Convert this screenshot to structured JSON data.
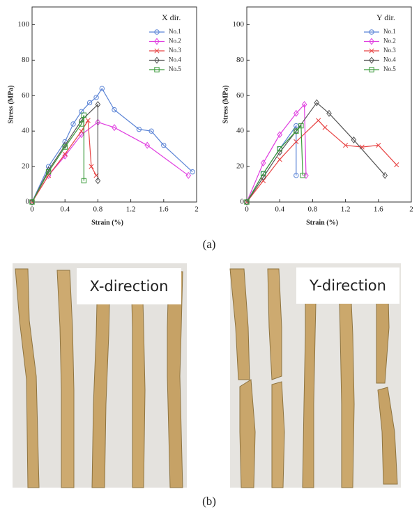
{
  "chart_data": [
    {
      "type": "line",
      "legend_title": "X dir.",
      "xlabel": "Strain (%)",
      "ylabel": "Stress (MPa)",
      "xlim": [
        0,
        2
      ],
      "ylim": [
        0,
        110
      ],
      "xticks": [
        0,
        0.4,
        0.8,
        1.2,
        1.6,
        2
      ],
      "yticks": [
        0,
        20,
        40,
        60,
        80,
        100
      ],
      "series": [
        {
          "name": "No.1",
          "color": "#5b84d6",
          "marker": "circle",
          "x": [
            0,
            0.2,
            0.4,
            0.5,
            0.6,
            0.7,
            0.78,
            0.85,
            1.0,
            1.3,
            1.45,
            1.6,
            1.95
          ],
          "values": [
            0,
            20,
            34,
            44,
            51,
            56,
            59,
            64,
            52,
            41,
            40,
            32,
            17
          ]
        },
        {
          "name": "No.2",
          "color": "#e03ee0",
          "marker": "diamond",
          "x": [
            0,
            0.2,
            0.4,
            0.6,
            0.8,
            1.0,
            1.4,
            1.9
          ],
          "values": [
            0,
            15,
            26,
            38,
            45,
            42,
            32,
            15
          ]
        },
        {
          "name": "No.3",
          "color": "#e84444",
          "marker": "x",
          "x": [
            0,
            0.2,
            0.4,
            0.6,
            0.68,
            0.72,
            0.78
          ],
          "values": [
            0,
            15,
            27,
            40,
            46,
            20,
            15
          ]
        },
        {
          "name": "No.4",
          "color": "#555555",
          "marker": "diamond",
          "x": [
            0,
            0.2,
            0.4,
            0.6,
            0.8,
            0.8
          ],
          "values": [
            0,
            18,
            32,
            46,
            55,
            12
          ]
        },
        {
          "name": "No.5",
          "color": "#3a9a3a",
          "marker": "square",
          "x": [
            0,
            0.2,
            0.4,
            0.6,
            0.63,
            0.63
          ],
          "values": [
            0,
            17,
            31,
            44,
            49,
            12
          ]
        }
      ]
    },
    {
      "type": "line",
      "legend_title": "Y dir.",
      "xlabel": "Strain (%)",
      "ylabel": "Stress (MPa)",
      "xlim": [
        0,
        2
      ],
      "ylim": [
        0,
        110
      ],
      "xticks": [
        0,
        0.4,
        0.8,
        1.2,
        1.6,
        2
      ],
      "yticks": [
        0,
        20,
        40,
        60,
        80,
        100
      ],
      "series": [
        {
          "name": "No.1",
          "color": "#5b84d6",
          "marker": "circle",
          "x": [
            0,
            0.2,
            0.4,
            0.6,
            0.6
          ],
          "values": [
            0,
            16,
            30,
            43,
            15
          ]
        },
        {
          "name": "No.2",
          "color": "#e03ee0",
          "marker": "diamond",
          "x": [
            0,
            0.2,
            0.4,
            0.6,
            0.7,
            0.72
          ],
          "values": [
            0,
            22,
            38,
            50,
            55,
            15
          ]
        },
        {
          "name": "No.3",
          "color": "#e84444",
          "marker": "x",
          "x": [
            0,
            0.2,
            0.4,
            0.6,
            0.87,
            0.95,
            1.2,
            1.4,
            1.6,
            1.82
          ],
          "values": [
            0,
            12,
            24,
            34,
            46,
            42,
            32,
            31,
            32,
            21
          ]
        },
        {
          "name": "No.4",
          "color": "#555555",
          "marker": "diamond",
          "x": [
            0,
            0.2,
            0.4,
            0.6,
            0.85,
            1.0,
            1.3,
            1.68
          ],
          "values": [
            0,
            14,
            28,
            40,
            56,
            50,
            35,
            15
          ]
        },
        {
          "name": "No.5",
          "color": "#3a9a3a",
          "marker": "square",
          "x": [
            0,
            0.2,
            0.4,
            0.6,
            0.66,
            0.68
          ],
          "values": [
            0,
            16,
            30,
            40,
            43,
            15
          ]
        }
      ]
    }
  ],
  "captions": [
    "(a)",
    "(b)"
  ],
  "photos": [
    {
      "label": "X-direction"
    },
    {
      "label": "Y-direction"
    }
  ]
}
